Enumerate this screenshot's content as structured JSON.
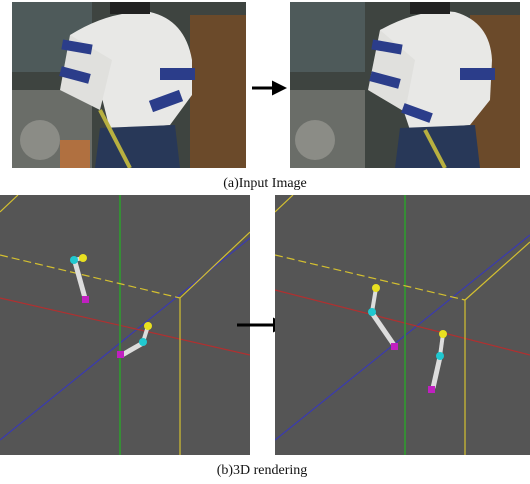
{
  "captions": {
    "a": "(a)Input Image",
    "b": "(b)3D rendering"
  }
}
